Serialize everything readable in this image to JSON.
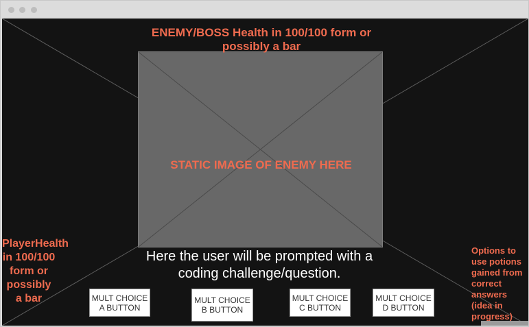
{
  "enemy_health_label": "ENEMY/BOSS Health in 100/100 form or possibly a bar",
  "enemy_image_label": "STATIC IMAGE OF ENEMY HERE",
  "player_health_label": "PlayerHealth in 100/100 form or possibly a bar",
  "prompt_text": "Here the user will be prompted with a coding challenge/question.",
  "buttons": {
    "a": "MULT CHOICE A BUTTON",
    "b": "MULT CHOICE B BUTTON",
    "c": "MULT CHOICE C BUTTON",
    "d": "MULT CHOICE D BUTTON"
  },
  "potions_label": "Options to use potions gained from correct answers (idea in progress)",
  "colors": {
    "background": "#131313",
    "accent_text": "#ef6b4f",
    "enemy_placeholder": "#686868"
  }
}
